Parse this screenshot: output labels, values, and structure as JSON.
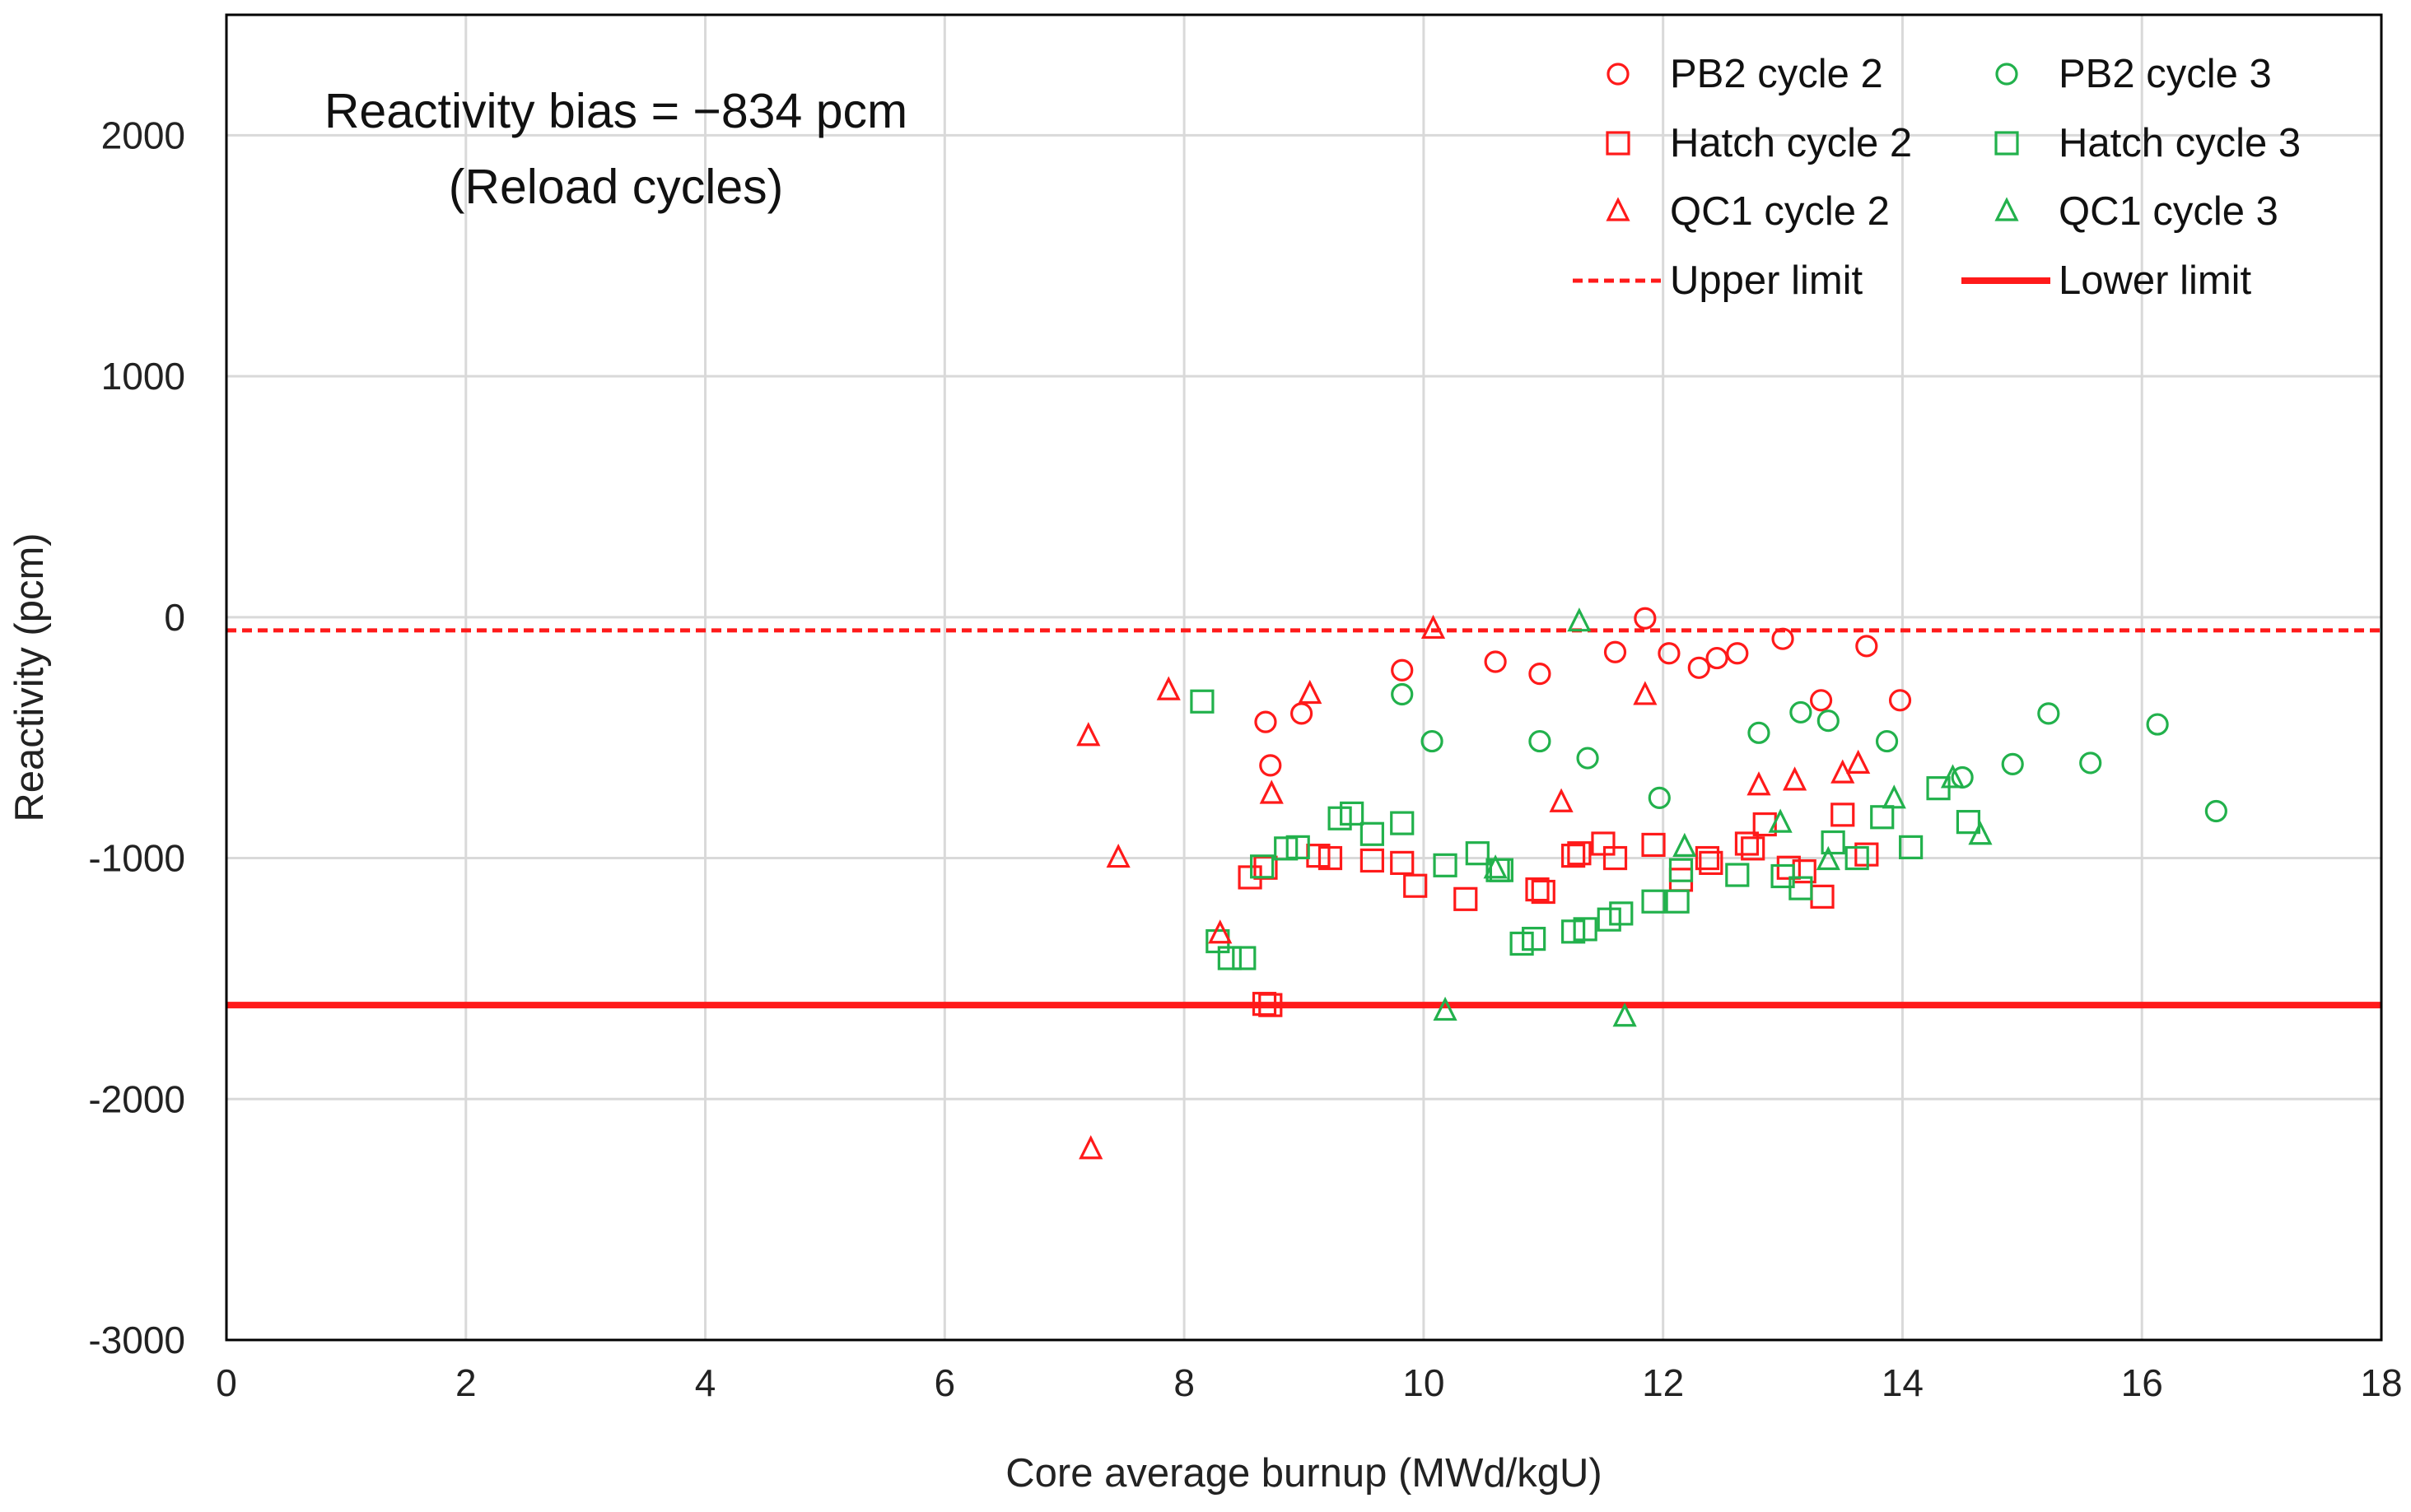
{
  "chart_data": {
    "type": "scatter",
    "title": "",
    "xlabel": "Core average burnup (MWd/kgU)",
    "ylabel": "Reactivity (pcm)",
    "xlim": [
      0,
      18
    ],
    "ylim": [
      -3000,
      2500
    ],
    "xticks": [
      0,
      2,
      4,
      6,
      8,
      10,
      12,
      14,
      16,
      18
    ],
    "yticks": [
      -3000,
      -2000,
      -1000,
      0,
      1000,
      2000
    ],
    "grid": true,
    "legend_position": "top-right",
    "annotation": {
      "line1": "Reactivity bias = −834 pcm",
      "line2": "(Reload cycles)"
    },
    "reference_lines": [
      {
        "name": "Upper limit",
        "y": -55,
        "color": "#ff1a1a",
        "style": "dashed"
      },
      {
        "name": "Lower limit",
        "y": -1610,
        "color": "#ff1a1a",
        "style": "solid"
      }
    ],
    "series": [
      {
        "name": "PB2 cycle 2",
        "marker": "circle",
        "color": "#ff1a1a",
        "points": [
          [
            8.68,
            -435
          ],
          [
            8.72,
            -615
          ],
          [
            8.98,
            -400
          ],
          [
            9.82,
            -220
          ],
          [
            10.6,
            -185
          ],
          [
            10.97,
            -235
          ],
          [
            11.6,
            -145
          ],
          [
            11.85,
            -5
          ],
          [
            12.05,
            -150
          ],
          [
            12.3,
            -210
          ],
          [
            12.45,
            -170
          ],
          [
            12.62,
            -150
          ],
          [
            13.0,
            -90
          ],
          [
            13.32,
            -345
          ],
          [
            13.7,
            -120
          ],
          [
            13.98,
            -345
          ]
        ]
      },
      {
        "name": "PB2 cycle 3",
        "marker": "circle",
        "color": "#22b14c",
        "points": [
          [
            9.82,
            -320
          ],
          [
            10.07,
            -515
          ],
          [
            10.97,
            -515
          ],
          [
            11.37,
            -585
          ],
          [
            11.97,
            -750
          ],
          [
            12.8,
            -480
          ],
          [
            13.15,
            -395
          ],
          [
            13.38,
            -430
          ],
          [
            13.87,
            -515
          ],
          [
            14.5,
            -665
          ],
          [
            14.92,
            -610
          ],
          [
            15.22,
            -400
          ],
          [
            15.57,
            -605
          ],
          [
            16.13,
            -445
          ],
          [
            16.62,
            -805
          ]
        ]
      },
      {
        "name": "Hatch cycle 2",
        "marker": "square",
        "color": "#ff1a1a",
        "points": [
          [
            8.55,
            -1080
          ],
          [
            8.68,
            -1040
          ],
          [
            8.72,
            -1610
          ],
          [
            8.67,
            -1605
          ],
          [
            9.12,
            -990
          ],
          [
            9.22,
            -1000
          ],
          [
            9.57,
            -1010
          ],
          [
            9.82,
            -1020
          ],
          [
            9.93,
            -1115
          ],
          [
            10.35,
            -1170
          ],
          [
            10.95,
            -1130
          ],
          [
            11.0,
            -1140
          ],
          [
            11.25,
            -990
          ],
          [
            11.3,
            -980
          ],
          [
            11.5,
            -940
          ],
          [
            11.6,
            -1000
          ],
          [
            11.92,
            -945
          ],
          [
            12.15,
            -1090
          ],
          [
            12.37,
            -1000
          ],
          [
            12.4,
            -1020
          ],
          [
            12.7,
            -940
          ],
          [
            12.75,
            -960
          ],
          [
            12.85,
            -860
          ],
          [
            13.05,
            -1040
          ],
          [
            13.18,
            -1055
          ],
          [
            13.33,
            -1160
          ],
          [
            13.5,
            -820
          ],
          [
            13.7,
            -985
          ]
        ]
      },
      {
        "name": "Hatch cycle 3",
        "marker": "square",
        "color": "#22b14c",
        "points": [
          [
            8.15,
            -350
          ],
          [
            8.28,
            -1345
          ],
          [
            8.38,
            -1415
          ],
          [
            8.5,
            -1415
          ],
          [
            8.65,
            -1035
          ],
          [
            8.85,
            -960
          ],
          [
            8.95,
            -955
          ],
          [
            9.3,
            -835
          ],
          [
            9.4,
            -815
          ],
          [
            9.57,
            -900
          ],
          [
            9.82,
            -855
          ],
          [
            10.18,
            -1030
          ],
          [
            10.45,
            -980
          ],
          [
            10.62,
            -1050
          ],
          [
            10.65,
            -1050
          ],
          [
            10.82,
            -1355
          ],
          [
            10.92,
            -1335
          ],
          [
            11.25,
            -1305
          ],
          [
            11.35,
            -1295
          ],
          [
            11.55,
            -1255
          ],
          [
            11.65,
            -1230
          ],
          [
            11.92,
            -1180
          ],
          [
            12.12,
            -1180
          ],
          [
            12.15,
            -1050
          ],
          [
            12.62,
            -1070
          ],
          [
            13.0,
            -1075
          ],
          [
            13.15,
            -1125
          ],
          [
            13.42,
            -935
          ],
          [
            13.62,
            -1000
          ],
          [
            13.83,
            -830
          ],
          [
            14.07,
            -955
          ],
          [
            14.3,
            -710
          ],
          [
            14.55,
            -850
          ]
        ]
      },
      {
        "name": "QC1 cycle 2",
        "marker": "triangle",
        "color": "#ff1a1a",
        "points": [
          [
            7.2,
            -495
          ],
          [
            7.22,
            -2210
          ],
          [
            7.45,
            -1000
          ],
          [
            7.87,
            -305
          ],
          [
            8.3,
            -1315
          ],
          [
            8.73,
            -735
          ],
          [
            9.05,
            -320
          ],
          [
            10.08,
            -50
          ],
          [
            11.15,
            -770
          ],
          [
            11.85,
            -325
          ],
          [
            12.8,
            -700
          ],
          [
            13.1,
            -680
          ],
          [
            13.5,
            -650
          ],
          [
            13.63,
            -610
          ]
        ]
      },
      {
        "name": "QC1 cycle 3",
        "marker": "triangle",
        "color": "#22b14c",
        "points": [
          [
            10.18,
            -1635
          ],
          [
            10.6,
            -1045
          ],
          [
            11.3,
            -20
          ],
          [
            11.68,
            -1660
          ],
          [
            12.18,
            -955
          ],
          [
            12.98,
            -855
          ],
          [
            13.38,
            -1010
          ],
          [
            13.93,
            -755
          ],
          [
            14.42,
            -670
          ],
          [
            14.65,
            -905
          ]
        ]
      }
    ]
  }
}
